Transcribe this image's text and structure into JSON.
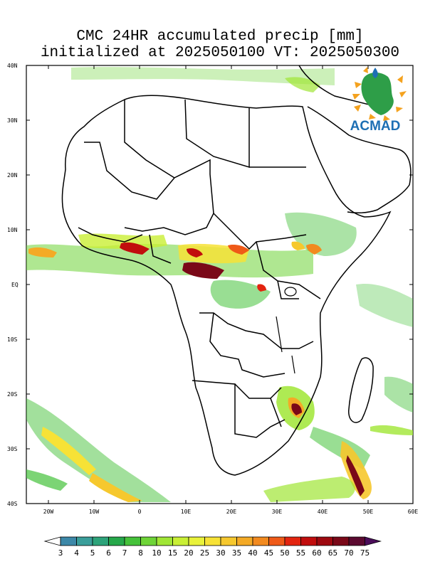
{
  "title": {
    "line1": "CMC 24HR accumulated precip [mm]",
    "line2": "initialized at 2025050100 VT: 2025050300"
  },
  "logo": {
    "text": "ACMAD"
  },
  "axes": {
    "lat_labels": [
      "40N",
      "30N",
      "20N",
      "10N",
      "EQ",
      "10S",
      "20S",
      "30S",
      "40S"
    ],
    "lon_labels": [
      "20W",
      "10W",
      "0",
      "10E",
      "20E",
      "30E",
      "40E",
      "50E",
      "60E"
    ]
  },
  "colorbar": {
    "levels": [
      "3",
      "4",
      "5",
      "6",
      "7",
      "8",
      "10",
      "15",
      "20",
      "25",
      "30",
      "35",
      "40",
      "45",
      "50",
      "55",
      "60",
      "65",
      "70",
      "75"
    ],
    "colors": [
      "#ffffff",
      "#3c88a8",
      "#3a9e9a",
      "#2da37a",
      "#26a84a",
      "#45c23a",
      "#6ed437",
      "#a0e635",
      "#c9ef35",
      "#e9f23a",
      "#f7e236",
      "#f6c82e",
      "#f4aa26",
      "#f28a1f",
      "#ef5a18",
      "#e3240f",
      "#c10d0d",
      "#9e0910",
      "#7a0818",
      "#5b0a30",
      "#4b0d5a"
    ]
  },
  "colors": {
    "land_outline": "#000000",
    "background": "#ffffff"
  }
}
